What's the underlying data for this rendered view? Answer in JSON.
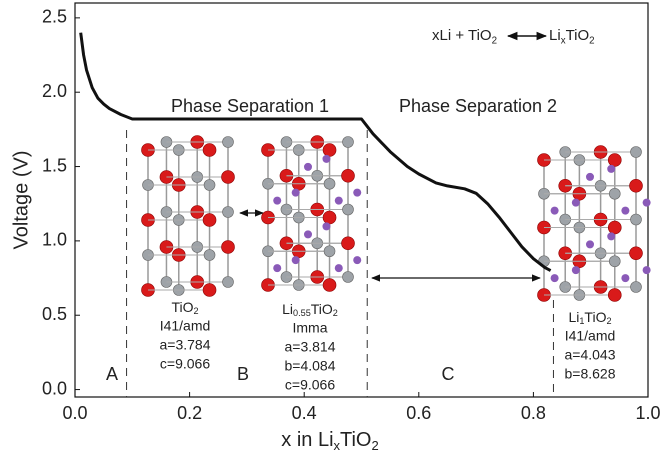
{
  "chart_data": {
    "type": "line",
    "x": [
      0.01,
      0.015,
      0.02,
      0.03,
      0.04,
      0.05,
      0.06,
      0.08,
      0.1,
      0.2,
      0.3,
      0.4,
      0.5,
      0.52,
      0.55,
      0.58,
      0.6,
      0.63,
      0.65,
      0.68,
      0.7,
      0.72,
      0.74,
      0.76,
      0.78,
      0.8,
      0.82,
      0.83
    ],
    "values": [
      2.4,
      2.25,
      2.15,
      2.03,
      1.96,
      1.92,
      1.89,
      1.85,
      1.82,
      1.82,
      1.82,
      1.82,
      1.82,
      1.72,
      1.6,
      1.5,
      1.45,
      1.39,
      1.37,
      1.35,
      1.32,
      1.25,
      1.16,
      1.06,
      0.96,
      0.88,
      0.82,
      0.8
    ],
    "color": "#111111",
    "xlim": [
      0,
      1
    ],
    "ylim": [
      -0.05,
      2.6
    ],
    "xticks": [
      {
        "value": 0,
        "label": "0.0"
      },
      0.2,
      0.4,
      0.6,
      0.8,
      {
        "value": 1,
        "label": "1.0"
      }
    ],
    "yticks": [
      {
        "value": 0,
        "label": "0.0"
      },
      0.5,
      {
        "value": 1,
        "label": "1.0"
      },
      1.5,
      {
        "value": 2,
        "label": "2.0"
      },
      2.5
    ],
    "ylabel": "Voltage (V)",
    "xlabel": [
      "x in Li",
      "x",
      "TiO",
      "2"
    ],
    "reaction_left": [
      "xLi + TiO",
      "2"
    ],
    "reaction_right": [
      "Li",
      "x",
      "TiO",
      "2"
    ],
    "phase_labels": [
      "Phase Separation 1",
      "Phase Separation 2"
    ],
    "regions": [
      "A",
      "B",
      "C"
    ],
    "boundaries": [
      0.09,
      0.51,
      0.835
    ],
    "structures": [
      {
        "name": [
          "TiO",
          "2"
        ],
        "lines": [
          "I41/amd",
          "a=3.784",
          "c=9.066"
        ]
      },
      {
        "name": [
          "Li",
          "0.55",
          "TiO",
          "2"
        ],
        "lines": [
          "Imma",
          "a=3.814",
          "b=4.084",
          "c=9.066"
        ]
      },
      {
        "name": [
          "Li",
          "1",
          "TiO",
          "2"
        ],
        "lines": [
          "I41/amd",
          "a=4.043",
          "b=8.628"
        ]
      }
    ]
  }
}
